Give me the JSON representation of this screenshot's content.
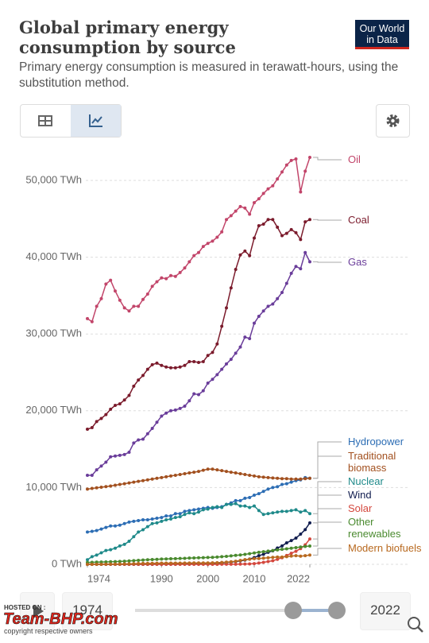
{
  "chart_data": {
    "type": "line",
    "title": "Global primary energy consumption by source",
    "subtitle": "Primary energy consumption is measured in terawatt-hours, using the substitution method.",
    "x": [
      1974,
      1975,
      1976,
      1977,
      1978,
      1979,
      1980,
      1981,
      1982,
      1983,
      1984,
      1985,
      1986,
      1987,
      1988,
      1989,
      1990,
      1991,
      1992,
      1993,
      1994,
      1995,
      1996,
      1997,
      1998,
      1999,
      2000,
      2001,
      2002,
      2003,
      2004,
      2005,
      2006,
      2007,
      2008,
      2009,
      2010,
      2011,
      2012,
      2013,
      2014,
      2015,
      2016,
      2017,
      2018,
      2019,
      2020,
      2021,
      2022
    ],
    "xlim": [
      1974,
      2022
    ],
    "xticks": [
      1974,
      1990,
      2000,
      2010,
      2022
    ],
    "ylim": [
      0,
      50000
    ],
    "yticks": [
      {
        "value": 0,
        "label": "0 TWh"
      },
      {
        "value": 10000,
        "label": "10,000 TWh"
      },
      {
        "value": 20000,
        "label": "20,000 TWh"
      },
      {
        "value": 30000,
        "label": "30,000 TWh"
      },
      {
        "value": 40000,
        "label": "40,000 TWh"
      },
      {
        "value": 50000,
        "label": "50,000 TWh"
      }
    ],
    "grid": true,
    "series": [
      {
        "name": "Oil",
        "color": "#c2456a",
        "values": [
          32000,
          31600,
          33600,
          34600,
          36500,
          37000,
          35600,
          34400,
          33400,
          33000,
          33600,
          33600,
          34500,
          35200,
          36200,
          36800,
          37300,
          37200,
          37600,
          37500,
          38000,
          38600,
          39400,
          40200,
          40600,
          41400,
          41800,
          42100,
          42600,
          43300,
          44900,
          45400,
          46000,
          46600,
          46400,
          45600,
          47100,
          47600,
          48300,
          48900,
          49300,
          50200,
          51100,
          52000,
          52600,
          52800,
          48500,
          51200,
          53000
        ]
      },
      {
        "name": "Coal",
        "color": "#7b1b2c",
        "values": [
          17600,
          17800,
          18600,
          19000,
          19500,
          20200,
          20700,
          20900,
          21400,
          22000,
          23200,
          24000,
          24600,
          25400,
          26000,
          26200,
          25900,
          25700,
          25600,
          25600,
          25700,
          25900,
          26400,
          26400,
          26300,
          26400,
          27200,
          27600,
          28700,
          31000,
          33400,
          36000,
          38400,
          40300,
          40800,
          40200,
          42500,
          44100,
          44300,
          44900,
          44900,
          43900,
          42800,
          43100,
          43600,
          43200,
          42300,
          44600,
          44900
        ]
      },
      {
        "name": "Gas",
        "color": "#6a3d9a",
        "values": [
          11600,
          11600,
          12300,
          12800,
          13300,
          14000,
          14100,
          14200,
          14300,
          14600,
          15800,
          16200,
          16300,
          17000,
          17700,
          18500,
          19300,
          19700,
          20000,
          20100,
          20300,
          20600,
          21300,
          22200,
          22100,
          22600,
          23600,
          24100,
          24700,
          25400,
          26100,
          26700,
          27500,
          28300,
          29600,
          29400,
          31400,
          32300,
          33000,
          33600,
          33900,
          34600,
          35400,
          36600,
          37900,
          38800,
          38500,
          40600,
          39400
        ]
      },
      {
        "name": "Hydropower",
        "color": "#2c6db4",
        "values": [
          4200,
          4300,
          4400,
          4600,
          4800,
          5000,
          5000,
          5100,
          5300,
          5500,
          5600,
          5700,
          5800,
          5800,
          5900,
          6000,
          6100,
          6300,
          6300,
          6600,
          6600,
          6900,
          7000,
          7100,
          7200,
          7300,
          7400,
          7300,
          7400,
          7500,
          7800,
          8000,
          8300,
          8300,
          8600,
          8700,
          9000,
          9200,
          9500,
          9800,
          10000,
          10100,
          10400,
          10500,
          10700,
          10900,
          11000,
          11300,
          11200
        ]
      },
      {
        "name": "Traditional biomass",
        "color": "#a2501f",
        "values": [
          9800,
          9880,
          9960,
          10040,
          10120,
          10200,
          10300,
          10400,
          10500,
          10600,
          10700,
          10800,
          10900,
          11000,
          11100,
          11200,
          11300,
          11400,
          11500,
          11600,
          11700,
          11800,
          11900,
          12000,
          12100,
          12250,
          12400,
          12400,
          12300,
          12200,
          12100,
          12000,
          11900,
          11800,
          11700,
          11600,
          11500,
          11400,
          11350,
          11300,
          11250,
          11200,
          11150,
          11150,
          11100,
          11100,
          11100,
          11150,
          11200
        ]
      },
      {
        "name": "Nuclear",
        "color": "#1f8a8a",
        "values": [
          600,
          1000,
          1200,
          1500,
          1800,
          1900,
          2100,
          2400,
          2600,
          3000,
          3600,
          4200,
          4500,
          4900,
          5300,
          5400,
          5600,
          5800,
          5900,
          6100,
          6200,
          6500,
          6700,
          6600,
          6800,
          7100,
          7200,
          7400,
          7500,
          7400,
          7800,
          7800,
          7900,
          7600,
          7600,
          7400,
          7600,
          7000,
          6500,
          6600,
          6700,
          6800,
          6900,
          6900,
          7000,
          7100,
          6800,
          7000,
          6600
        ]
      },
      {
        "name": "Wind",
        "color": "#111d4f",
        "values": [
          0,
          0,
          0,
          0,
          0,
          0,
          0,
          0,
          0,
          0,
          0,
          1,
          2,
          3,
          5,
          7,
          9,
          10,
          12,
          15,
          20,
          22,
          30,
          40,
          55,
          75,
          90,
          110,
          150,
          180,
          240,
          290,
          360,
          450,
          560,
          690,
          880,
          1120,
          1310,
          1560,
          1760,
          2120,
          2390,
          2800,
          3090,
          3410,
          3930,
          4520,
          5400
        ]
      },
      {
        "name": "Solar",
        "color": "#d4473d",
        "values": [
          0,
          0,
          0,
          0,
          0,
          0,
          0,
          0,
          0,
          0,
          0,
          0,
          0,
          0,
          0,
          0,
          0,
          1,
          1,
          1,
          1,
          2,
          2,
          2,
          2,
          3,
          3,
          4,
          5,
          7,
          9,
          11,
          15,
          20,
          34,
          53,
          90,
          170,
          260,
          360,
          470,
          650,
          860,
          1150,
          1440,
          1700,
          2050,
          2540,
          3300
        ]
      },
      {
        "name": "Other renewables",
        "color": "#4a8a2f",
        "values": [
          250,
          260,
          280,
          300,
          310,
          330,
          350,
          380,
          400,
          440,
          480,
          520,
          560,
          590,
          620,
          650,
          680,
          700,
          720,
          740,
          760,
          780,
          810,
          830,
          850,
          870,
          890,
          900,
          940,
          990,
          1040,
          1100,
          1160,
          1220,
          1300,
          1380,
          1480,
          1560,
          1640,
          1720,
          1800,
          1880,
          1950,
          2020,
          2100,
          2180,
          2250,
          2330,
          2380
        ]
      },
      {
        "name": "Modern biofuels",
        "color": "#b8691f",
        "values": [
          0,
          0,
          0,
          5,
          10,
          20,
          30,
          40,
          50,
          60,
          80,
          100,
          110,
          120,
          130,
          140,
          150,
          150,
          155,
          160,
          160,
          170,
          170,
          180,
          180,
          180,
          180,
          190,
          210,
          240,
          280,
          330,
          400,
          500,
          610,
          660,
          740,
          750,
          800,
          850,
          910,
          940,
          950,
          1000,
          1070,
          1130,
          1060,
          1120,
          1200
        ]
      }
    ]
  },
  "logo": "Our World in Data",
  "timeline": {
    "start": "1974",
    "end": "2022"
  },
  "watermark": {
    "hosted": "HOSTED ON :",
    "brand": "Team-BHP.com",
    "copyright": "copyright respective owners"
  }
}
